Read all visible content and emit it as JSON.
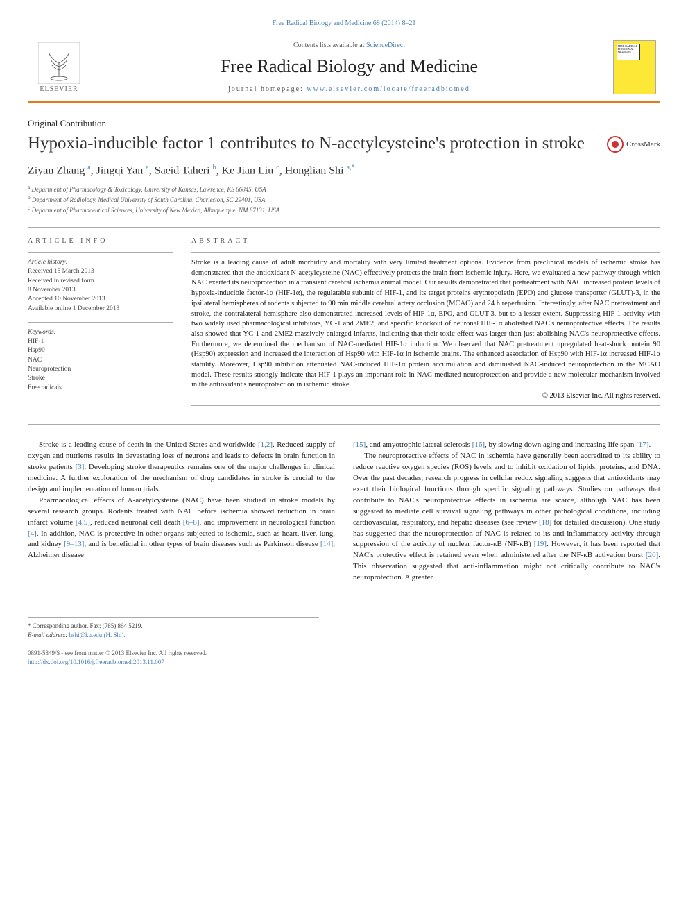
{
  "top_citation": "Free Radical Biology and Medicine 68 (2014) 8–21",
  "header": {
    "contents_prefix": "Contents lists available at ",
    "contents_link": "ScienceDirect",
    "journal": "Free Radical Biology and Medicine",
    "homepage_prefix": "journal homepage: ",
    "homepage_url": "www.elsevier.com/locate/freeradbiomed",
    "publisher": "ELSEVIER",
    "cover_text": "FREE RADICAL BIOLOGY & MEDICINE"
  },
  "article": {
    "type": "Original Contribution",
    "title": "Hypoxia-inducible factor 1 contributes to N-acetylcysteine's protection in stroke",
    "crossmark": "CrossMark",
    "authors_html": "Ziyan Zhang <sup>a</sup>, Jingqi Yan <sup>a</sup>, Saeid Taheri <sup>b</sup>, Ke Jian Liu <sup>c</sup>, Honglian Shi <sup>a,*</sup>",
    "affiliations": [
      "a Department of Pharmacology & Toxicology, University of Kansas, Lawrence, KS 66045, USA",
      "b Department of Radiology, Medical University of South Carolina, Charleston, SC 29401, USA",
      "c Department of Pharmaceutical Sciences, University of New Mexico, Albuquerque, NM 87131, USA"
    ]
  },
  "info": {
    "label": "ARTICLE INFO",
    "history_label": "Article history:",
    "history": [
      "Received 15 March 2013",
      "Received in revised form",
      "8 November 2013",
      "Accepted 10 November 2013",
      "Available online 1 December 2013"
    ],
    "keywords_label": "Keywords:",
    "keywords": [
      "HIF-1",
      "Hsp90",
      "NAC",
      "Neuroprotection",
      "Stroke",
      "Free radicals"
    ]
  },
  "abstract": {
    "label": "ABSTRACT",
    "text": "Stroke is a leading cause of adult morbidity and mortality with very limited treatment options. Evidence from preclinical models of ischemic stroke has demonstrated that the antioxidant N-acetylcysteine (NAC) effectively protects the brain from ischemic injury. Here, we evaluated a new pathway through which NAC exerted its neuroprotection in a transient cerebral ischemia animal model. Our results demonstrated that pretreatment with NAC increased protein levels of hypoxia-inducible factor-1α (HIF-1α), the regulatable subunit of HIF-1, and its target proteins erythropoietin (EPO) and glucose transporter (GLUT)-3, in the ipsilateral hemispheres of rodents subjected to 90 min middle cerebral artery occlusion (MCAO) and 24 h reperfusion. Interestingly, after NAC pretreatment and stroke, the contralateral hemisphere also demonstrated increased levels of HIF-1α, EPO, and GLUT-3, but to a lesser extent. Suppressing HIF-1 activity with two widely used pharmacological inhibitors, YC-1 and 2ME2, and specific knockout of neuronal HIF-1α abolished NAC's neuroprotective effects. The results also showed that YC-1 and 2ME2 massively enlarged infarcts, indicating that their toxic effect was larger than just abolishing NAC's neuroprotective effects. Furthermore, we determined the mechanism of NAC-mediated HIF-1α induction. We observed that NAC pretreatment upregulated heat-shock protein 90 (Hsp90) expression and increased the interaction of Hsp90 with HIF-1α in ischemic brains. The enhanced association of Hsp90 with HIF-1α increased HIF-1α stability. Moreover, Hsp90 inhibition attenuated NAC-induced HIF-1α protein accumulation and diminished NAC-induced neuroprotection in the MCAO model. These results strongly indicate that HIF-1 plays an important role in NAC-mediated neuroprotection and provide a new molecular mechanism involved in the antioxidant's neuroprotection in ischemic stroke.",
    "copyright": "© 2013 Elsevier Inc. All rights reserved."
  },
  "body": {
    "left": [
      {
        "indent": true,
        "html": "Stroke is a leading cause of death in the United States and worldwide <span class='cite'>[1,2]</span>. Reduced supply of oxygen and nutrients results in devastating loss of neurons and leads to defects in brain function in stroke patients <span class='cite'>[3]</span>. Developing stroke therapeutics remains one of the major challenges in clinical medicine. A further exploration of the mechanism of drug candidates in stroke is crucial to the design and implementation of human trials."
      },
      {
        "indent": true,
        "html": "Pharmacological effects of <i>N</i>-acetylcysteine (NAC) have been studied in stroke models by several research groups. Rodents treated with NAC before ischemia showed reduction in brain infarct volume <span class='cite'>[4,5]</span>, reduced neuronal cell death <span class='cite'>[6–8]</span>, and improvement in neurological function <span class='cite'>[4]</span>. In addition, NAC is protective in other organs subjected to ischemia, such as heart, liver, lung, and kidney <span class='cite'>[9–13]</span>, and is beneficial in other types of brain diseases such as Parkinson disease <span class='cite'>[14]</span>, Alzheimer disease"
      }
    ],
    "right": [
      {
        "indent": false,
        "html": "<span class='cite'>[15]</span>, and amyotrophic lateral sclerosis <span class='cite'>[16]</span>, by slowing down aging and increasing life span <span class='cite'>[17]</span>."
      },
      {
        "indent": true,
        "html": "The neuroprotective effects of NAC in ischemia have generally been accredited to its ability to reduce reactive oxygen species (ROS) levels and to inhibit oxidation of lipids, proteins, and DNA. Over the past decades, research progress in cellular redox signaling suggests that antioxidants may exert their biological functions through specific signaling pathways. Studies on pathways that contribute to NAC's neuroprotective effects in ischemia are scarce, although NAC has been suggested to mediate cell survival signaling pathways in other pathological conditions, including cardiovascular, respiratory, and hepatic diseases (see review <span class='cite'>[18]</span> for detailed discussion). One study has suggested that the neuroprotection of NAC is related to its anti-inflammatory activity through suppression of the activity of nuclear factor-κB (NF-κB) <span class='cite'>[19]</span>. However, it has been reported that NAC's protective effect is retained even when administered after the NF-κB activation burst <span class='cite'>[20]</span>. This observation suggested that anti-inflammation might not critically contribute to NAC's neuroprotection. A greater"
      }
    ]
  },
  "footnotes": {
    "corr_label": "* Corresponding author. Fax: (785) 864 5219.",
    "email_label": "E-mail address: ",
    "email": "hshi@ku.edu (H. Shi).",
    "issn_line": "0891-5849/$ - see front matter © 2013 Elsevier Inc. All rights reserved.",
    "doi": "http://dx.doi.org/10.1016/j.freeradbiomed.2013.11.007"
  },
  "colors": {
    "link": "#4a7eb0",
    "accent": "#e67817",
    "cover": "#fee837"
  }
}
